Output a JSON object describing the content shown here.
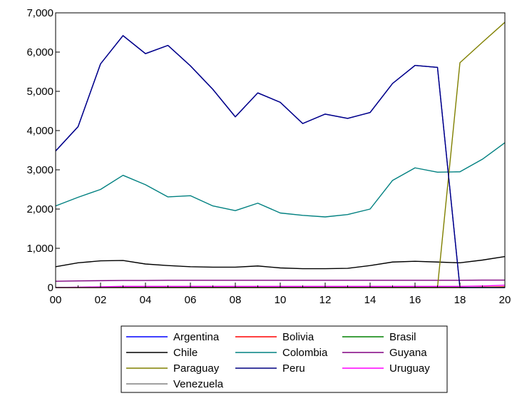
{
  "chart_data": {
    "type": "line",
    "title": "",
    "xlabel": "",
    "ylabel": "",
    "x": [
      2000,
      2001,
      2002,
      2003,
      2004,
      2005,
      2006,
      2007,
      2008,
      2009,
      2010,
      2011,
      2012,
      2013,
      2014,
      2015,
      2016,
      2017,
      2018,
      2019,
      2020
    ],
    "xlim": [
      2000,
      2020
    ],
    "ylim": [
      0,
      7000
    ],
    "grid": false,
    "legend_position": "bottom",
    "x_ticks": [
      {
        "value": 2000,
        "label": "00"
      },
      {
        "value": 2002,
        "label": "02"
      },
      {
        "value": 2004,
        "label": "04"
      },
      {
        "value": 2006,
        "label": "06"
      },
      {
        "value": 2008,
        "label": "08"
      },
      {
        "value": 2010,
        "label": "10"
      },
      {
        "value": 2012,
        "label": "12"
      },
      {
        "value": 2014,
        "label": "14"
      },
      {
        "value": 2016,
        "label": "16"
      },
      {
        "value": 2018,
        "label": "18"
      },
      {
        "value": 2020,
        "label": "20"
      }
    ],
    "y_ticks": [
      {
        "value": 0,
        "label": "0"
      },
      {
        "value": 1000,
        "label": "1,000"
      },
      {
        "value": 2000,
        "label": "2,000"
      },
      {
        "value": 3000,
        "label": "3,000"
      },
      {
        "value": 4000,
        "label": "4,000"
      },
      {
        "value": 5000,
        "label": "5,000"
      },
      {
        "value": 6000,
        "label": "6,000"
      },
      {
        "value": 7000,
        "label": "7,000"
      }
    ],
    "series": [
      {
        "name": "Argentina",
        "color": "#0000ff",
        "values": [
          3480,
          4100,
          5700,
          6420,
          5960,
          6170,
          5650,
          5050,
          4350,
          4960,
          4720,
          4180,
          4420,
          4310,
          4460,
          5200,
          5660,
          5610,
          0,
          0,
          0
        ]
      },
      {
        "name": "Bolivia",
        "color": "#ff0000",
        "values": [
          0,
          0,
          0,
          0,
          0,
          0,
          0,
          0,
          0,
          0,
          0,
          0,
          0,
          0,
          0,
          0,
          0,
          0,
          0,
          10,
          20
        ]
      },
      {
        "name": "Brasil",
        "color": "#008000",
        "values": [
          5,
          5,
          5,
          5,
          5,
          5,
          5,
          5,
          5,
          5,
          5,
          5,
          5,
          5,
          5,
          5,
          5,
          5,
          5,
          5,
          5
        ]
      },
      {
        "name": "Chile",
        "color": "#000000",
        "values": [
          530,
          630,
          680,
          690,
          600,
          560,
          530,
          520,
          520,
          550,
          500,
          480,
          480,
          490,
          560,
          650,
          670,
          650,
          630,
          700,
          790
        ]
      },
      {
        "name": "Colombia",
        "color": "#008080",
        "values": [
          2080,
          2300,
          2500,
          2860,
          2620,
          2310,
          2340,
          2080,
          1960,
          2150,
          1900,
          1840,
          1800,
          1860,
          2000,
          2730,
          3050,
          2940,
          2950,
          3270,
          3690
        ]
      },
      {
        "name": "Guyana",
        "color": "#800080",
        "values": [
          160,
          170,
          175,
          180,
          180,
          185,
          185,
          185,
          185,
          185,
          185,
          185,
          185,
          185,
          185,
          185,
          185,
          185,
          185,
          190,
          190
        ]
      },
      {
        "name": "Paraguay",
        "color": "#808000",
        "values": [
          0,
          0,
          0,
          0,
          0,
          0,
          0,
          0,
          0,
          0,
          0,
          0,
          0,
          0,
          0,
          0,
          0,
          0,
          5730,
          6250,
          6760
        ]
      },
      {
        "name": "Peru",
        "color": "#000080",
        "values": [
          3480,
          4100,
          5700,
          6420,
          5960,
          6170,
          5650,
          5050,
          4350,
          4960,
          4720,
          4180,
          4420,
          4310,
          4460,
          5200,
          5660,
          5610,
          0,
          0,
          0
        ]
      },
      {
        "name": "Uruguay",
        "color": "#ff00ff",
        "values": [
          0,
          10,
          20,
          30,
          30,
          30,
          30,
          30,
          30,
          30,
          30,
          30,
          30,
          30,
          30,
          30,
          30,
          30,
          30,
          40,
          60
        ]
      },
      {
        "name": "Venezuela",
        "color": "#808080",
        "values": [
          0,
          0,
          0,
          0,
          0,
          0,
          0,
          0,
          0,
          0,
          0,
          0,
          0,
          0,
          0,
          0,
          0,
          0,
          0,
          0,
          0
        ]
      }
    ]
  }
}
